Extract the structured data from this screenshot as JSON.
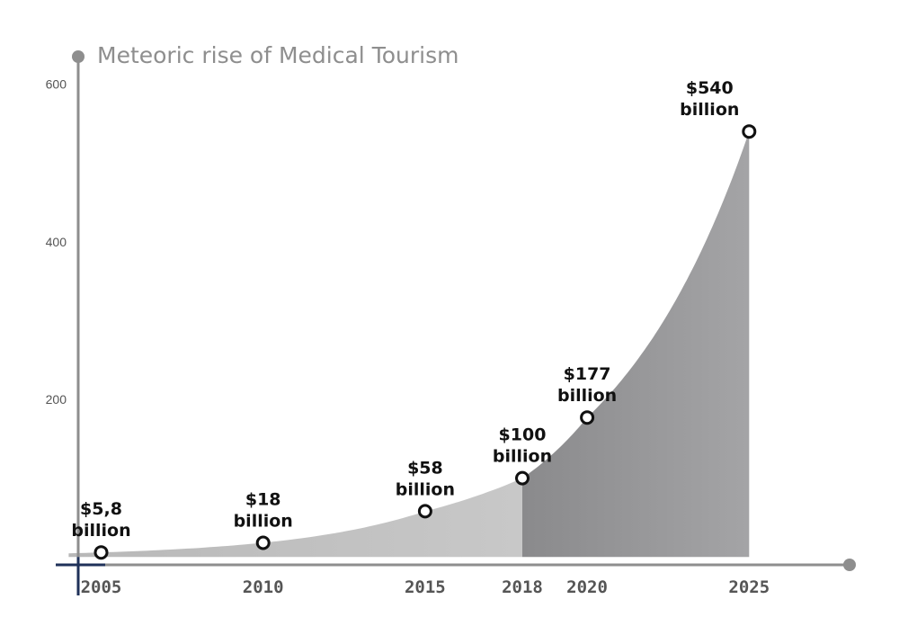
{
  "chart_data": {
    "type": "area",
    "title": "Meteoric rise of Medical Tourism",
    "xlabel": "",
    "ylabel": "",
    "xlim": [
      2003.6,
      2028.1
    ],
    "ylim": [
      -10,
      635
    ],
    "yticks": [
      600,
      400,
      200
    ],
    "xticks": [
      "2005",
      "2010",
      "2015",
      "2018",
      "2020",
      "2025"
    ],
    "grid": false,
    "series": [
      {
        "points": [
          {
            "x": 2005,
            "y": 5.8,
            "label": [
              "$5,8",
              "billion"
            ]
          },
          {
            "x": 2010,
            "y": 18,
            "label": [
              "$18",
              "billion"
            ]
          },
          {
            "x": 2015,
            "y": 58,
            "label": [
              "$58",
              "billion"
            ]
          },
          {
            "x": 2018,
            "y": 100,
            "label": [
              "$100",
              "billion"
            ]
          },
          {
            "x": 2020,
            "y": 177,
            "label": [
              "$177",
              "billion"
            ]
          },
          {
            "x": 2025,
            "y": 540,
            "label": [
              "$540",
              "billion"
            ]
          }
        ]
      }
    ],
    "split_at": 2018,
    "colors": {
      "area_light": "#c4c4c4",
      "area_dark": "#8f9092",
      "axis_x": "#1f3159",
      "axis_y": "#8e8e8e",
      "title": "#8e8e8e"
    }
  }
}
